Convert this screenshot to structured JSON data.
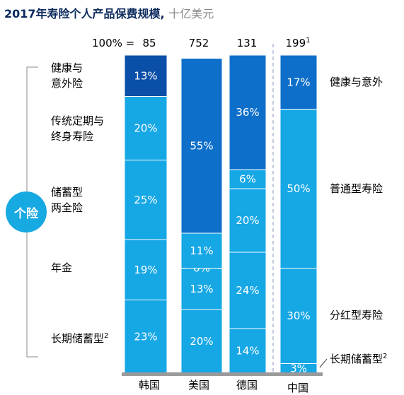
{
  "title": "2017年寿险个人产品保费规模,",
  "unit": "十亿美元",
  "total_label": "100% =",
  "badge": "个险",
  "left_categories": [
    {
      "line1": "健康与",
      "line2": "意外险"
    },
    {
      "line1": "传统定期与",
      "line2": "终身寿险"
    },
    {
      "line1": "储蓄型",
      "line2": "两全险"
    },
    {
      "line1": "年金",
      "line2": ""
    },
    {
      "line1": "长期储蓄型",
      "line2": "",
      "sup": "2"
    }
  ],
  "right_categories": [
    {
      "label": "健康与意外"
    },
    {
      "label": "普通型寿险"
    },
    {
      "label": "分红型寿险"
    },
    {
      "label": "长期储蓄型",
      "sup": "2"
    }
  ],
  "colors": {
    "dark": "#0a4fa8",
    "mid": "#0e6fca",
    "light": "#16a7e5",
    "title": "#0b2a5c",
    "badge": "#17a9e1"
  },
  "chart_data": {
    "type": "bar",
    "stacked": true,
    "percent_stacked": true,
    "categories": [
      "韩国",
      "美国",
      "德国",
      "中国"
    ],
    "totals": [
      "85",
      "752",
      "131",
      "199"
    ],
    "total_sups": [
      "",
      "",
      "",
      "1"
    ],
    "bars": [
      {
        "name": "韩国",
        "segments": [
          {
            "value": 23,
            "label": "23%",
            "color": "#16a7e5"
          },
          {
            "value": 19,
            "label": "19%",
            "color": "#16a7e5"
          },
          {
            "value": 25,
            "label": "25%",
            "color": "#16a7e5"
          },
          {
            "value": 20,
            "label": "20%",
            "color": "#16a7e5"
          },
          {
            "value": 13,
            "label": "13%",
            "color": "#0a4fa8"
          }
        ]
      },
      {
        "name": "美国",
        "segments": [
          {
            "value": 20,
            "label": "20%",
            "color": "#16a7e5"
          },
          {
            "value": 13,
            "label": "13%",
            "color": "#16a7e5"
          },
          {
            "value": 0,
            "label": "0%",
            "color": "#16a7e5"
          },
          {
            "value": 11,
            "label": "11%",
            "color": "#16a7e5"
          },
          {
            "value": 55,
            "label": "55%",
            "color": "#0e6fca"
          }
        ]
      },
      {
        "name": "德国",
        "segments": [
          {
            "value": 14,
            "label": "14%",
            "color": "#16a7e5"
          },
          {
            "value": 24,
            "label": "24%",
            "color": "#16a7e5"
          },
          {
            "value": 20,
            "label": "20%",
            "color": "#16a7e5"
          },
          {
            "value": 6,
            "label": "6%",
            "color": "#16a7e5"
          },
          {
            "value": 36,
            "label": "36%",
            "color": "#0e6fca"
          }
        ]
      },
      {
        "name": "中国",
        "segments": [
          {
            "value": 3,
            "label": "3%",
            "color": "#16a7e5"
          },
          {
            "value": 30,
            "label": "30%",
            "color": "#16a7e5"
          },
          {
            "value": 50,
            "label": "50%",
            "color": "#16a7e5"
          },
          {
            "value": 17,
            "label": "17%",
            "color": "#0e6fca"
          }
        ]
      }
    ],
    "ylim": [
      0,
      100
    ]
  }
}
